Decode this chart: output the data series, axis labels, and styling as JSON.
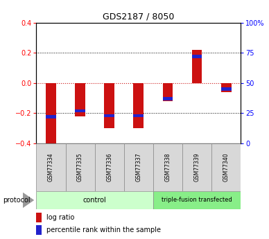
{
  "title": "GDS2187 / 8050",
  "samples": [
    "GSM77334",
    "GSM77335",
    "GSM77336",
    "GSM77337",
    "GSM77338",
    "GSM77339",
    "GSM77340"
  ],
  "log_ratio": [
    -0.4,
    -0.22,
    -0.3,
    -0.3,
    -0.12,
    0.22,
    -0.06
  ],
  "percentile": [
    22,
    27,
    23,
    23,
    37,
    72,
    45
  ],
  "groups": [
    {
      "label": "control",
      "indices": [
        0,
        1,
        2,
        3
      ],
      "color": "#ccffcc"
    },
    {
      "label": "triple-fusion transfected",
      "indices": [
        4,
        5,
        6
      ],
      "color": "#88ee88"
    }
  ],
  "ylim": [
    -0.4,
    0.4
  ],
  "yticks_left": [
    -0.4,
    -0.2,
    0.0,
    0.2,
    0.4
  ],
  "yticks_right_vals": [
    0,
    25,
    50,
    75,
    100
  ],
  "bar_width": 0.35,
  "log_ratio_color": "#cc1111",
  "percentile_color": "#2222cc",
  "background_color": "#ffffff",
  "zero_line_color": "#cc1111",
  "protocol_label": "protocol",
  "legend_log_ratio": "log ratio",
  "legend_percentile": "percentile rank within the sample"
}
